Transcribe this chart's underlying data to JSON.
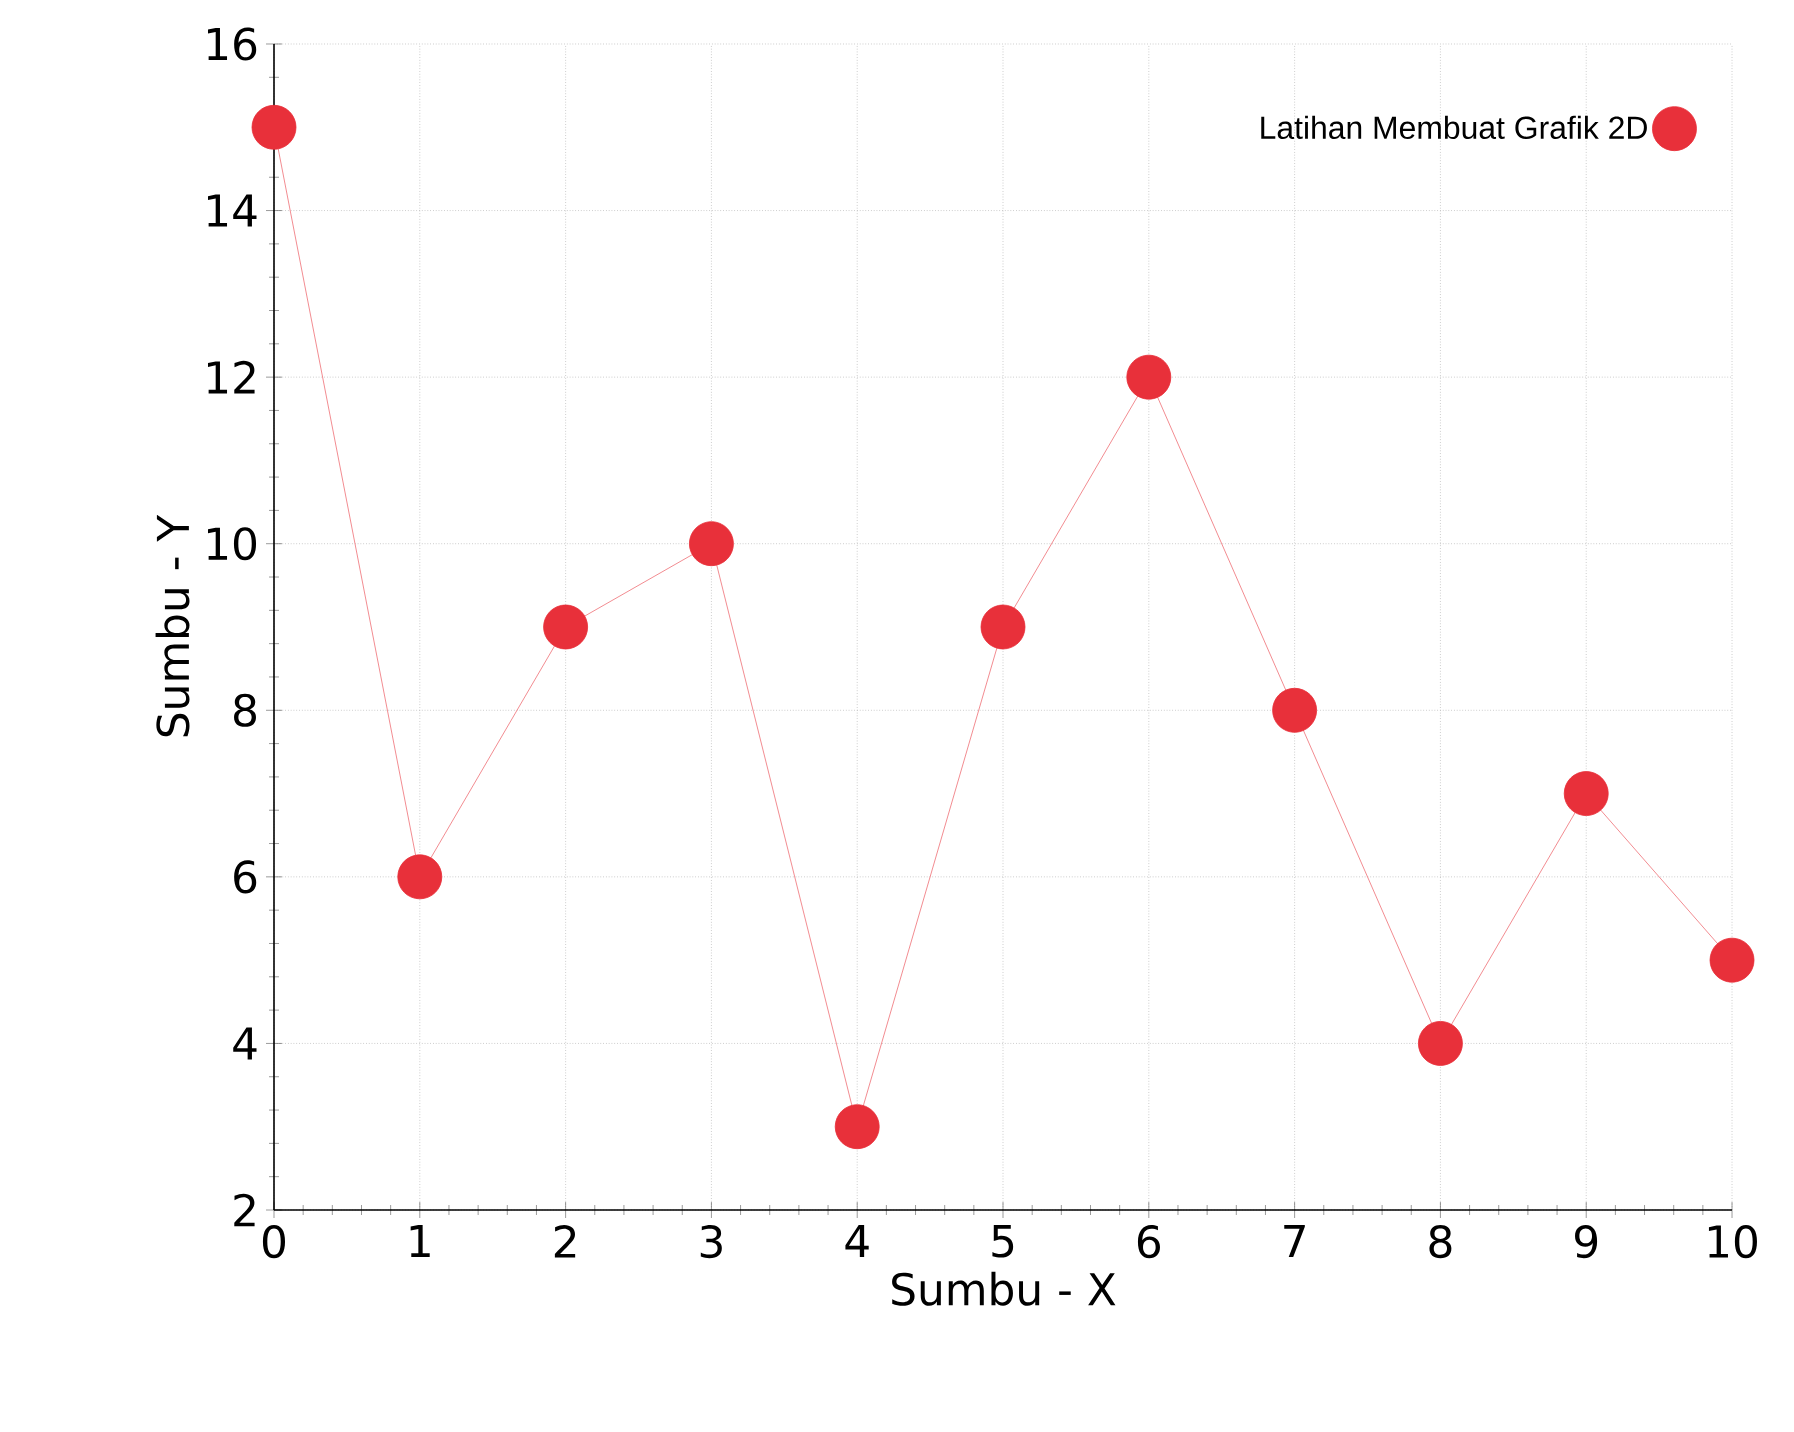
{
  "chart_data": {
    "type": "line",
    "xlabel": "Sumbu - X",
    "ylabel": "Sumbu - Y",
    "x": [
      0,
      1,
      2,
      3,
      4,
      5,
      6,
      7,
      8,
      9,
      10
    ],
    "series": [
      {
        "name": "Latihan Membuat Grafik 2D",
        "color": "#e8303a",
        "values": [
          15,
          6,
          9,
          10,
          3,
          9,
          12,
          8,
          4,
          7,
          5
        ]
      }
    ],
    "xlim": [
      0,
      10
    ],
    "ylim": [
      2,
      16
    ],
    "xticks": [
      0,
      1,
      2,
      3,
      4,
      5,
      6,
      7,
      8,
      9,
      10
    ],
    "yticks": [
      2,
      4,
      6,
      8,
      10,
      12,
      14,
      16
    ],
    "grid": true,
    "legend": "top right",
    "marker": "circle",
    "line_style": "solid"
  }
}
